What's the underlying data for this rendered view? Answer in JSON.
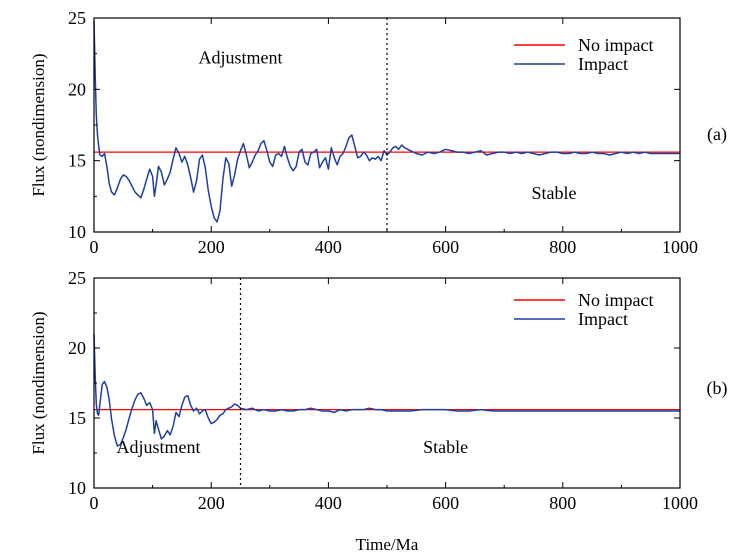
{
  "chart_data": [
    {
      "type": "line",
      "panel_label": "(a)",
      "ylabel": "Flux (nondimension)",
      "xlabel": "",
      "xlim": [
        0,
        1000
      ],
      "ylim": [
        10,
        25
      ],
      "xticks": [
        0,
        200,
        400,
        600,
        800,
        1000
      ],
      "yticks": [
        10,
        15,
        20,
        25
      ],
      "grid": false,
      "legend_position": "top-right",
      "divider_x": 500,
      "regions": [
        {
          "label": "Adjustment",
          "x": 250,
          "y": 21.8
        },
        {
          "label": "Stable",
          "x": 785,
          "y": 12.3
        }
      ],
      "series": [
        {
          "name": "No impact",
          "color": "#ff0000",
          "x": [
            0,
            1000
          ],
          "y": [
            15.6,
            15.6
          ]
        },
        {
          "name": "Impact",
          "color": "#1f3f9f",
          "x": [
            0,
            2,
            4,
            6,
            8,
            10,
            14,
            18,
            22,
            26,
            30,
            35,
            40,
            45,
            50,
            55,
            60,
            65,
            70,
            75,
            80,
            85,
            90,
            95,
            100,
            103,
            106,
            110,
            115,
            120,
            125,
            130,
            135,
            140,
            145,
            150,
            155,
            160,
            165,
            170,
            175,
            180,
            185,
            190,
            195,
            200,
            205,
            210,
            215,
            220,
            225,
            230,
            235,
            240,
            245,
            250,
            255,
            260,
            265,
            270,
            275,
            280,
            285,
            290,
            295,
            300,
            305,
            310,
            315,
            320,
            325,
            330,
            335,
            340,
            345,
            350,
            355,
            360,
            365,
            370,
            375,
            380,
            385,
            390,
            395,
            400,
            405,
            410,
            415,
            420,
            425,
            430,
            435,
            440,
            445,
            450,
            455,
            460,
            465,
            470,
            475,
            480,
            485,
            490,
            495,
            500,
            505,
            510,
            515,
            520,
            525,
            530,
            540,
            550,
            560,
            570,
            580,
            590,
            600,
            610,
            620,
            630,
            640,
            650,
            660,
            670,
            680,
            690,
            700,
            710,
            720,
            730,
            740,
            750,
            760,
            770,
            780,
            790,
            800,
            810,
            820,
            830,
            840,
            850,
            860,
            870,
            880,
            890,
            900,
            910,
            920,
            930,
            940,
            950,
            960,
            970,
            980,
            990,
            1000
          ],
          "y": [
            24.8,
            21.0,
            18.2,
            16.8,
            16.0,
            15.4,
            15.3,
            15.5,
            14.6,
            13.4,
            12.8,
            12.6,
            13.1,
            13.7,
            14.0,
            13.9,
            13.6,
            13.2,
            12.8,
            12.6,
            12.4,
            13.0,
            13.7,
            14.4,
            13.9,
            12.5,
            13.3,
            14.6,
            14.2,
            13.3,
            13.7,
            14.2,
            15.1,
            15.9,
            15.5,
            14.9,
            15.3,
            14.7,
            13.8,
            12.8,
            13.6,
            15.1,
            15.4,
            14.5,
            12.9,
            11.8,
            11.0,
            10.7,
            11.5,
            13.7,
            15.2,
            14.8,
            13.2,
            14.0,
            15.1,
            15.7,
            16.2,
            15.4,
            14.5,
            14.9,
            15.4,
            15.7,
            16.2,
            16.4,
            15.7,
            14.9,
            14.6,
            15.4,
            15.5,
            15.3,
            16.0,
            15.2,
            14.6,
            14.3,
            14.6,
            15.6,
            15.8,
            14.9,
            14.7,
            15.5,
            15.6,
            15.8,
            14.5,
            14.9,
            15.2,
            14.4,
            15.9,
            15.2,
            14.7,
            15.3,
            15.5,
            16.0,
            16.6,
            16.8,
            16.0,
            15.2,
            15.3,
            15.6,
            15.4,
            15.0,
            15.2,
            15.1,
            15.3,
            15.0,
            15.7,
            15.4,
            15.6,
            15.9,
            16.0,
            15.8,
            16.1,
            15.9,
            15.7,
            15.5,
            15.4,
            15.6,
            15.5,
            15.6,
            15.8,
            15.7,
            15.6,
            15.6,
            15.5,
            15.6,
            15.7,
            15.4,
            15.5,
            15.6,
            15.6,
            15.5,
            15.6,
            15.5,
            15.6,
            15.5,
            15.4,
            15.5,
            15.6,
            15.6,
            15.5,
            15.5,
            15.6,
            15.5,
            15.5,
            15.6,
            15.5,
            15.5,
            15.4,
            15.5,
            15.6,
            15.5,
            15.6,
            15.5,
            15.6,
            15.5,
            15.5,
            15.5,
            15.5,
            15.5,
            15.5
          ]
        }
      ]
    },
    {
      "type": "line",
      "panel_label": "(b)",
      "ylabel": "Flux (nondimension)",
      "xlabel": "Time/Ma",
      "xlim": [
        0,
        1000
      ],
      "ylim": [
        10,
        25
      ],
      "xticks": [
        0,
        200,
        400,
        600,
        800,
        1000
      ],
      "yticks": [
        10,
        15,
        20,
        25
      ],
      "grid": false,
      "legend_position": "top-right",
      "divider_x": 250,
      "regions": [
        {
          "label": "Adjustment",
          "x": 110,
          "y": 12.5
        },
        {
          "label": "Stable",
          "x": 600,
          "y": 12.5
        }
      ],
      "series": [
        {
          "name": "No impact",
          "color": "#ff0000",
          "x": [
            0,
            1000
          ],
          "y": [
            15.6,
            15.6
          ]
        },
        {
          "name": "Impact",
          "color": "#1f3f9f",
          "x": [
            0,
            2,
            4,
            6,
            8,
            10,
            14,
            18,
            22,
            26,
            30,
            35,
            40,
            45,
            50,
            55,
            60,
            65,
            70,
            75,
            80,
            85,
            90,
            95,
            100,
            103,
            106,
            110,
            115,
            120,
            125,
            130,
            135,
            140,
            145,
            150,
            155,
            160,
            165,
            170,
            175,
            180,
            185,
            190,
            195,
            200,
            205,
            210,
            215,
            220,
            225,
            230,
            235,
            240,
            245,
            250,
            260,
            270,
            280,
            290,
            300,
            310,
            320,
            330,
            340,
            350,
            360,
            370,
            380,
            390,
            400,
            410,
            420,
            430,
            440,
            450,
            460,
            470,
            480,
            490,
            500,
            520,
            540,
            560,
            580,
            600,
            620,
            640,
            660,
            680,
            700,
            750,
            800,
            850,
            900,
            950,
            1000
          ],
          "y": [
            21.0,
            18.0,
            16.0,
            15.3,
            15.2,
            16.0,
            17.4,
            17.6,
            17.2,
            16.3,
            14.9,
            13.7,
            13.0,
            13.1,
            13.6,
            14.2,
            15.0,
            15.7,
            16.3,
            16.7,
            16.8,
            16.4,
            15.9,
            16.1,
            15.6,
            13.9,
            14.8,
            14.2,
            13.5,
            13.7,
            14.1,
            13.8,
            14.4,
            15.4,
            15.1,
            15.9,
            16.5,
            16.6,
            15.9,
            15.5,
            15.7,
            15.3,
            15.5,
            15.6,
            15.0,
            14.6,
            14.7,
            14.9,
            15.2,
            15.3,
            15.6,
            15.7,
            15.8,
            16.0,
            15.9,
            15.7,
            15.6,
            15.7,
            15.5,
            15.6,
            15.5,
            15.5,
            15.6,
            15.5,
            15.5,
            15.6,
            15.6,
            15.7,
            15.6,
            15.5,
            15.5,
            15.4,
            15.6,
            15.5,
            15.6,
            15.6,
            15.6,
            15.7,
            15.6,
            15.6,
            15.5,
            15.5,
            15.5,
            15.6,
            15.6,
            15.6,
            15.5,
            15.5,
            15.6,
            15.5,
            15.5,
            15.5,
            15.5,
            15.5,
            15.5,
            15.5,
            15.5
          ]
        }
      ]
    }
  ]
}
